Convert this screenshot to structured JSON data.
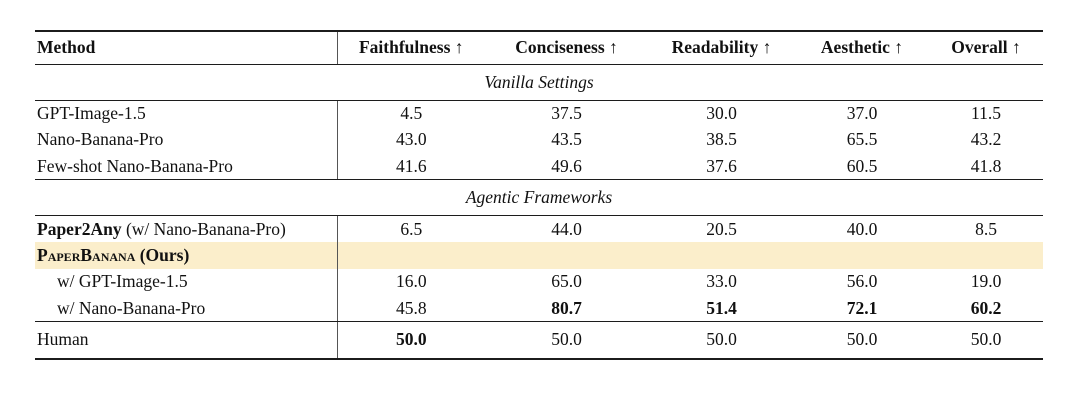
{
  "table": {
    "header": {
      "method": "Method",
      "metrics": [
        "Faithfulness ↑",
        "Conciseness ↑",
        "Readability ↑",
        "Aesthetic ↑",
        "Overall ↑"
      ]
    },
    "sections": [
      {
        "label": "Vanilla Settings",
        "rows": [
          {
            "method": "GPT-Image-1.5",
            "values": [
              "4.5",
              "37.5",
              "30.0",
              "37.0",
              "11.5"
            ]
          },
          {
            "method": "Nano-Banana-Pro",
            "values": [
              "43.0",
              "43.5",
              "38.5",
              "65.5",
              "43.2"
            ]
          },
          {
            "method": "Few-shot Nano-Banana-Pro",
            "values": [
              "41.6",
              "49.6",
              "37.6",
              "60.5",
              "41.8"
            ]
          }
        ]
      },
      {
        "label": "Agentic Frameworks",
        "rows": [
          {
            "method_bold": "Paper2Any",
            "method_rest": " (w/ Nano-Banana-Pro)",
            "values": [
              "6.5",
              "44.0",
              "20.5",
              "40.0",
              "8.5"
            ]
          },
          {
            "method_smallcaps": "PaperBanana",
            "method_rest": " (Ours)",
            "values": [
              "",
              "",
              "",
              "",
              ""
            ]
          },
          {
            "method": "w/ GPT-Image-1.5",
            "values": [
              "16.0",
              "65.0",
              "33.0",
              "56.0",
              "19.0"
            ]
          },
          {
            "method": "w/ Nano-Banana-Pro",
            "values": [
              "45.8",
              "80.7",
              "51.4",
              "72.1",
              "60.2"
            ]
          }
        ]
      }
    ],
    "footer": {
      "method": "Human",
      "values": [
        "50.0",
        "50.0",
        "50.0",
        "50.0",
        "50.0"
      ]
    },
    "highlight_color": "#FBEECB",
    "rule_color": "#1c1c1c"
  }
}
